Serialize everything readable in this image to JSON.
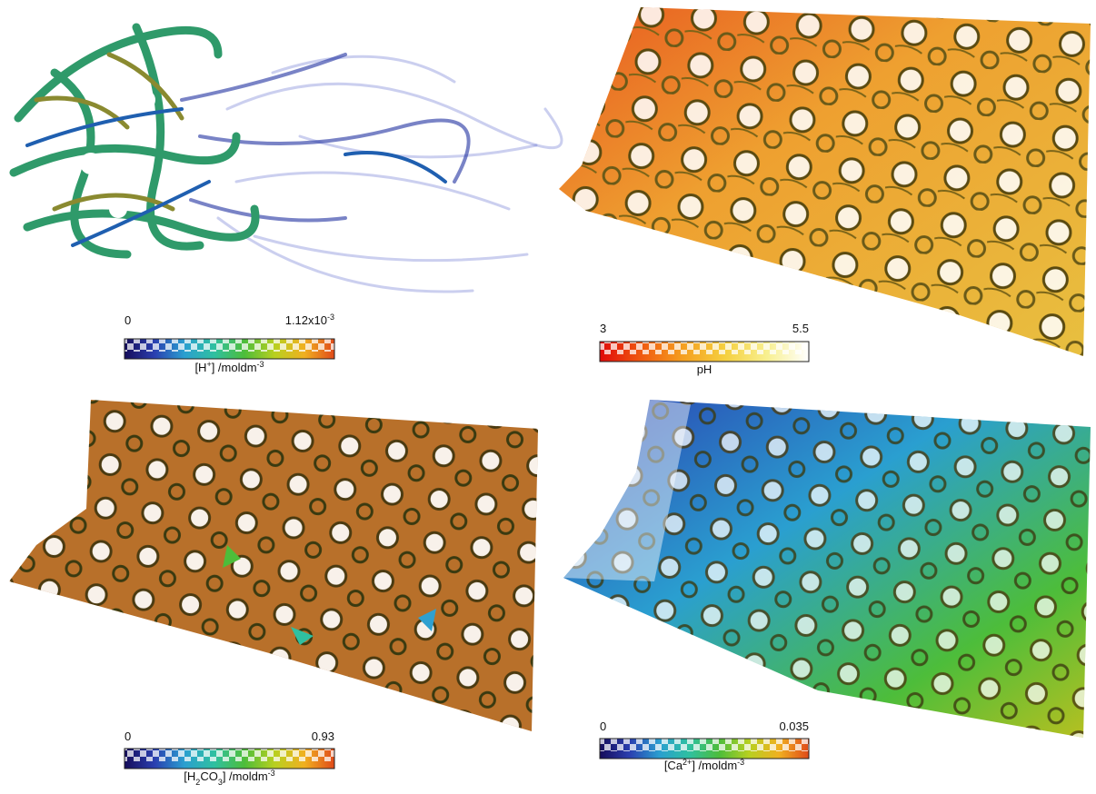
{
  "panels": [
    {
      "min": [
        {
          "text": "0"
        }
      ],
      "max": [
        {
          "text": "1.12x10"
        },
        {
          "sup": "-3"
        }
      ],
      "label": [
        {
          "text": "[H"
        },
        {
          "sup": "+"
        },
        {
          "text": "] /moldm"
        },
        {
          "sup": "-3"
        }
      ],
      "colormap": [
        "#150c5a",
        "#2a3fb0",
        "#2a9fd0",
        "#2fc0a0",
        "#4dbd3a",
        "#b8d020",
        "#f0b020",
        "#e04a1a"
      ]
    },
    {
      "min": [
        {
          "text": "3"
        }
      ],
      "max": [
        {
          "text": "5.5"
        }
      ],
      "label": [
        {
          "text": "pH"
        }
      ],
      "colormap": [
        "#e00a0a",
        "#f05a10",
        "#f5a020",
        "#f5d040",
        "#f8f090",
        "#ffffff"
      ]
    },
    {
      "min": [
        {
          "text": "0"
        }
      ],
      "max": [
        {
          "text": "0.93"
        }
      ],
      "label": [
        {
          "text": "[H"
        },
        {
          "sub": "2"
        },
        {
          "text": "CO"
        },
        {
          "sub": "3"
        },
        {
          "text": "] /moldm"
        },
        {
          "sup": "-3"
        }
      ],
      "colormap": [
        "#150c5a",
        "#2a3fb0",
        "#2a9fd0",
        "#2fc0a0",
        "#4dbd3a",
        "#b8d020",
        "#f0b020",
        "#e04a1a"
      ]
    },
    {
      "min": [
        {
          "text": "0"
        }
      ],
      "max": [
        {
          "text": "0.035"
        }
      ],
      "label": [
        {
          "text": "[Ca"
        },
        {
          "sup": "2+"
        },
        {
          "text": "] /moldm"
        },
        {
          "sup": "-3"
        }
      ],
      "colormap": [
        "#150c5a",
        "#2a3fb0",
        "#2a9fd0",
        "#2fc0a0",
        "#4dbd3a",
        "#b8d020",
        "#f0b020",
        "#e04a1a"
      ]
    }
  ]
}
